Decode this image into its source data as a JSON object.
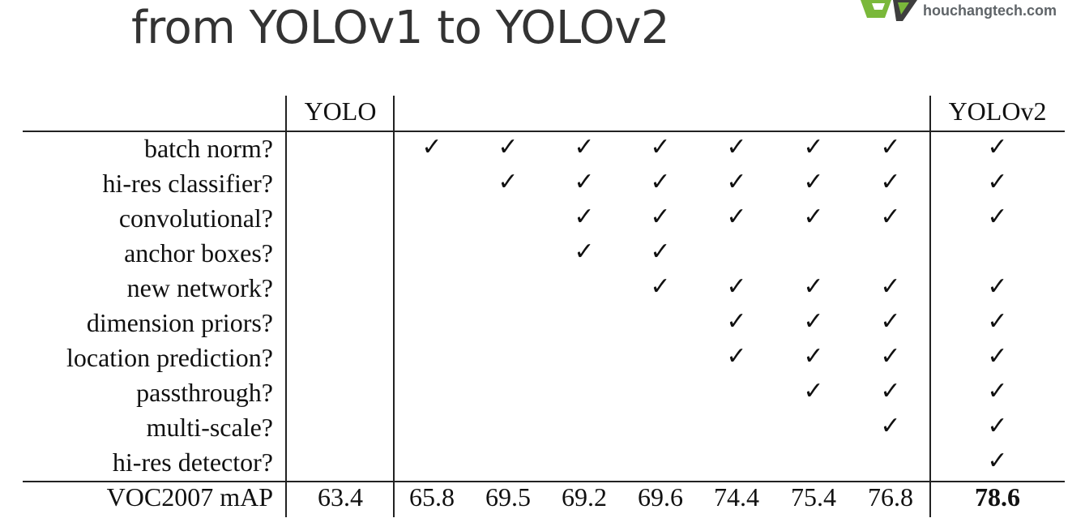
{
  "title": "from YOLOv1 to YOLOv2",
  "brand": "houchangtech.com",
  "logo_icon": "ev-logo-icon",
  "table": {
    "header_yolo": "YOLO",
    "header_yolov2": "YOLOv2",
    "features": [
      "batch norm?",
      "hi-res classifier?",
      "convolutional?",
      "anchor boxes?",
      "new network?",
      "dimension priors?",
      "location prediction?",
      "passthrough?",
      "multi-scale?",
      "hi-res detector?"
    ],
    "check_symbol": "✓",
    "checks": [
      [
        false,
        true,
        true,
        true,
        true,
        true,
        true,
        true,
        true
      ],
      [
        false,
        false,
        true,
        true,
        true,
        true,
        true,
        true,
        true
      ],
      [
        false,
        false,
        false,
        true,
        true,
        true,
        true,
        true,
        true
      ],
      [
        false,
        false,
        false,
        true,
        true,
        false,
        false,
        false,
        false
      ],
      [
        false,
        false,
        false,
        false,
        true,
        true,
        true,
        true,
        true
      ],
      [
        false,
        false,
        false,
        false,
        false,
        true,
        true,
        true,
        true
      ],
      [
        false,
        false,
        false,
        false,
        false,
        true,
        true,
        true,
        true
      ],
      [
        false,
        false,
        false,
        false,
        false,
        false,
        true,
        true,
        true
      ],
      [
        false,
        false,
        false,
        false,
        false,
        false,
        false,
        true,
        true
      ],
      [
        false,
        false,
        false,
        false,
        false,
        false,
        false,
        false,
        true
      ]
    ],
    "metric_label": "VOC2007 mAP",
    "scores": [
      "63.4",
      "65.8",
      "69.5",
      "69.2",
      "69.6",
      "74.4",
      "75.4",
      "76.8",
      "78.6"
    ]
  }
}
